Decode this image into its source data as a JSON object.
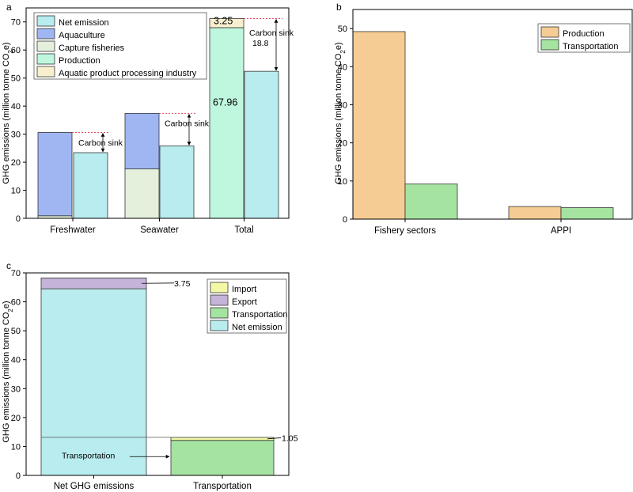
{
  "colors": {
    "net_emission": "#b8ecee",
    "aquaculture": "#9fb6f2",
    "capture_fisheries": "#e5f0dc",
    "production_green": "#bff7de",
    "processing": "#f8efcf",
    "production_orange": "#f5cc93",
    "transportation": "#a5e3a0",
    "import": "#f4f8a6",
    "export": "#c6b3d9"
  },
  "chart_data": [
    {
      "panel": "a",
      "type": "bar",
      "ylabel_main": "GHG emissions (million tonne CO",
      "ylabel_sub": "2",
      "ylabel_end": "e)",
      "ylim": [
        0,
        75
      ],
      "yticks": [
        "0",
        "10",
        "20",
        "30",
        "40",
        "50",
        "60",
        "70"
      ],
      "categories": [
        "Freshwater",
        "Seawater",
        "Total"
      ],
      "legend": [
        "Net emission",
        "Aquaculture",
        "Capture fisheries",
        "Production",
        "Aquatic product processing industry"
      ],
      "stacks": [
        {
          "category": "Freshwater",
          "segments": [
            {
              "series": "Capture fisheries",
              "value": 0.9
            },
            {
              "series": "Aquaculture",
              "value": 29.7
            }
          ]
        },
        {
          "category": "Seawater",
          "segments": [
            {
              "series": "Capture fisheries",
              "value": 17.6
            },
            {
              "series": "Aquaculture",
              "value": 19.8
            }
          ]
        },
        {
          "category": "Total",
          "segments": [
            {
              "series": "Production",
              "value": 67.96
            },
            {
              "series": "Aquatic product processing industry",
              "value": 3.25
            }
          ]
        }
      ],
      "net": [
        {
          "category": "Freshwater",
          "value": 23.4
        },
        {
          "category": "Seawater",
          "value": 25.8
        },
        {
          "category": "Total",
          "value": 52.4
        }
      ],
      "labels": {
        "production_value": "67.96",
        "processing_value": "3.25",
        "carbon_sink": "Carbon sink",
        "carbon_sink_total": "18.8"
      }
    },
    {
      "panel": "b",
      "type": "bar",
      "ylabel_main": "GHG emissions (million tonne CO",
      "ylabel_sub": "2",
      "ylabel_end": "e)",
      "ylim": [
        0,
        55
      ],
      "yticks": [
        "0",
        "10",
        "20",
        "30",
        "40",
        "50"
      ],
      "categories": [
        "Fishery sectors",
        "APPI"
      ],
      "legend": [
        "Production",
        "Transportation"
      ],
      "series": [
        {
          "name": "Production",
          "values": [
            49.2,
            3.3
          ]
        },
        {
          "name": "Transportation",
          "values": [
            9.2,
            3.0
          ]
        }
      ]
    },
    {
      "panel": "c",
      "type": "bar",
      "ylabel_main": "GHG emissions (million tonne CO",
      "ylabel_sub": "2",
      "ylabel_end": "e)",
      "ylim": [
        0,
        70
      ],
      "yticks": [
        "0",
        "10",
        "20",
        "30",
        "40",
        "50",
        "60",
        "70"
      ],
      "categories": [
        "Net GHG emissions",
        "Transportation"
      ],
      "legend": [
        "Import",
        "Export",
        "Transportation",
        "Net emission"
      ],
      "stacks": [
        {
          "category": "Net GHG emissions",
          "segments": [
            {
              "series": "Net emission",
              "value": 64.5
            },
            {
              "series": "Export",
              "value": 3.75
            }
          ]
        },
        {
          "category": "Transportation",
          "segments": [
            {
              "series": "Transportation",
              "value": 12.1
            },
            {
              "series": "Import",
              "value": 1.05
            }
          ]
        }
      ],
      "labels": {
        "export_value": "3.75",
        "import_value": "1.05",
        "transportation_note": "Transportation"
      }
    }
  ]
}
